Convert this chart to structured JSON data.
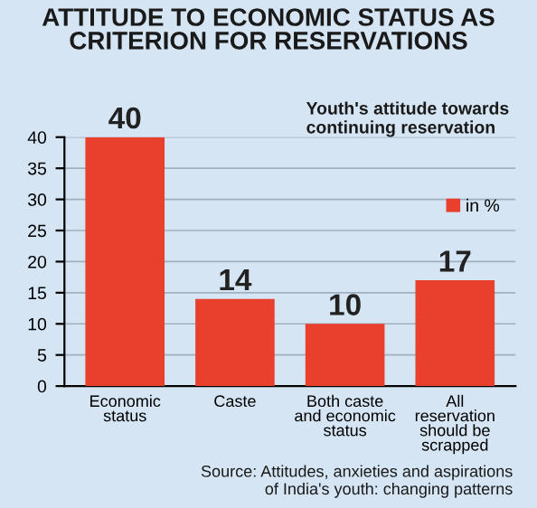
{
  "chart_data": {
    "type": "bar",
    "title": "ATTITUDE TO ECONOMIC STATUS AS CRITERION FOR RESERVATIONS",
    "subtitle": "Youth's attitude towards continuing reservation",
    "categories": [
      "Economic status",
      "Caste",
      "Both caste and economic status",
      "All reservation should be scrapped"
    ],
    "series": [
      {
        "name": "in %",
        "color": "#e8402c",
        "values": [
          40,
          14,
          10,
          17
        ]
      }
    ],
    "ylim": [
      0,
      40
    ],
    "yticks": [
      0,
      5,
      10,
      15,
      20,
      25,
      30,
      35,
      40
    ],
    "grid": "y",
    "legend": "right",
    "data_labels": true,
    "annotations": [
      "Source: Attitudes, anxieties and aspirations of India's youth: changing patterns"
    ]
  }
}
